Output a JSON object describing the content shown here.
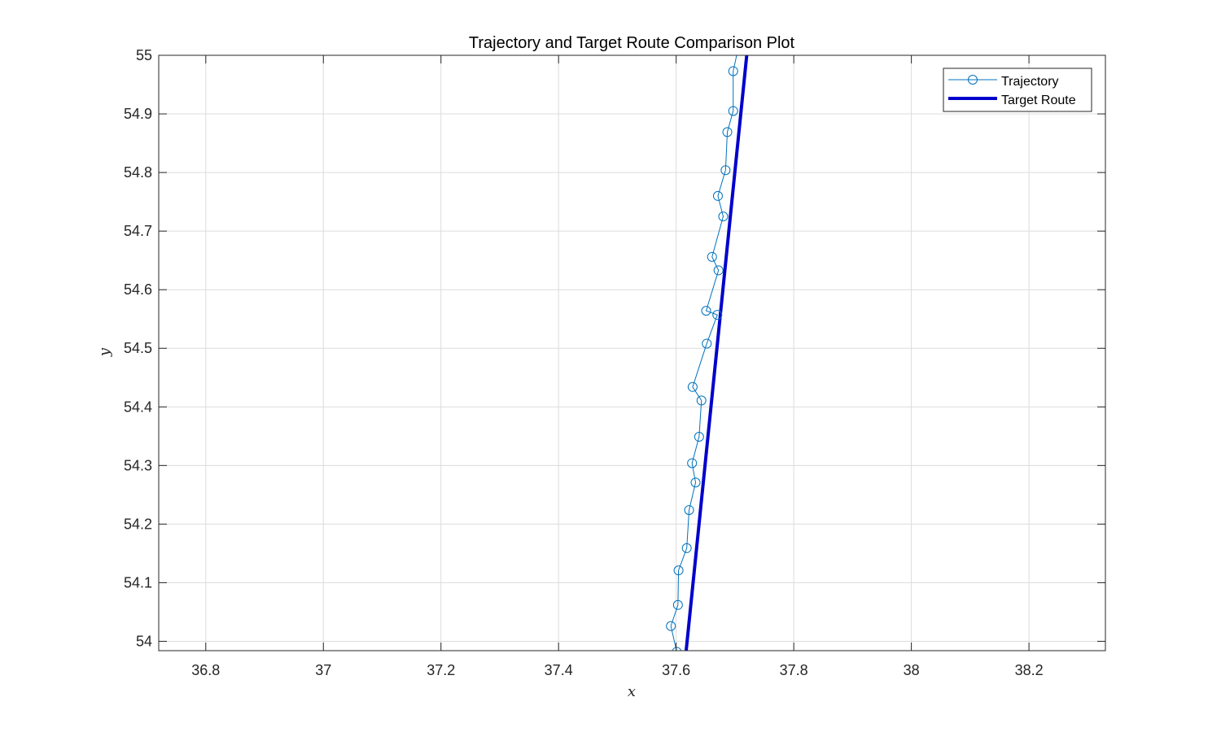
{
  "chart_data": {
    "type": "line",
    "title": "Trajectory and Target Route Comparison Plot",
    "xlabel": "x",
    "ylabel": "y",
    "xlim": [
      36.72,
      38.33
    ],
    "ylim": [
      53.984,
      55.0
    ],
    "xticks": [
      36.8,
      37.0,
      37.2,
      37.4,
      37.6,
      37.8,
      38.0,
      38.2
    ],
    "xtick_labels": [
      "36.8",
      "37",
      "37.2",
      "37.4",
      "37.6",
      "37.8",
      "38",
      "38.2"
    ],
    "yticks": [
      54.0,
      54.1,
      54.2,
      54.3,
      54.4,
      54.5,
      54.6,
      54.7,
      54.8,
      54.9,
      55.0
    ],
    "ytick_labels": [
      "54",
      "54.1",
      "54.2",
      "54.3",
      "54.4",
      "54.5",
      "54.6",
      "54.7",
      "54.8",
      "54.9",
      "55"
    ],
    "grid": true,
    "legend_position": "top-right",
    "series": [
      {
        "name": "Trajectory",
        "color": "#0072BD",
        "marker": "circle",
        "x": [
          37.601,
          37.591,
          37.603,
          37.604,
          37.618,
          37.622,
          37.633,
          37.627,
          37.639,
          37.643,
          37.628,
          37.652,
          37.67,
          37.651,
          37.672,
          37.661,
          37.68,
          37.671,
          37.684,
          37.687,
          37.697,
          37.697,
          37.705
        ],
        "y": [
          53.982,
          54.026,
          54.062,
          54.121,
          54.159,
          54.224,
          54.271,
          54.304,
          54.349,
          54.411,
          54.434,
          54.508,
          54.557,
          54.564,
          54.633,
          54.656,
          54.725,
          54.76,
          54.804,
          54.869,
          54.905,
          54.973,
          55.01
        ]
      },
      {
        "name": "Target Route",
        "color": "#0000CC",
        "x": [
          37.617,
          37.72
        ],
        "y": [
          53.984,
          55.0
        ]
      }
    ]
  }
}
